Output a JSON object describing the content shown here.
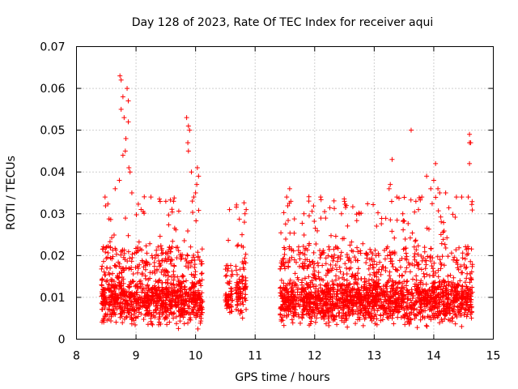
{
  "chart_data": {
    "type": "scatter",
    "title": "Day 128 of 2023, Rate Of TEC Index for receiver aqui",
    "xlabel": "GPS time / hours",
    "ylabel": "ROTI / TECUs",
    "xlim": [
      8,
      15
    ],
    "ylim": [
      0,
      0.07
    ],
    "x_ticks": [
      "8",
      "9",
      "10",
      "11",
      "12",
      "13",
      "14",
      "15"
    ],
    "y_ticks": [
      "0",
      "0.01",
      "0.02",
      "0.03",
      "0.04",
      "0.05",
      "0.06",
      "0.07"
    ],
    "grid": true,
    "marker": "+",
    "color": "#ff0000",
    "series": [
      {
        "segments": [
          {
            "x_start": 8.42,
            "x_end": 10.12,
            "baseline": 0.009,
            "spread": 0.006,
            "count": 1100
          },
          {
            "x_start": 10.5,
            "x_end": 10.62,
            "baseline": 0.009,
            "spread": 0.004,
            "count": 60
          },
          {
            "x_start": 10.67,
            "x_end": 10.85,
            "baseline": 0.011,
            "spread": 0.006,
            "count": 90
          },
          {
            "x_start": 11.42,
            "x_end": 14.65,
            "baseline": 0.009,
            "spread": 0.006,
            "count": 2000
          }
        ],
        "highlights": [
          {
            "x": 8.73,
            "y": 0.063
          },
          {
            "x": 8.75,
            "y": 0.062
          },
          {
            "x": 8.85,
            "y": 0.06
          },
          {
            "x": 8.78,
            "y": 0.058
          },
          {
            "x": 8.87,
            "y": 0.057
          },
          {
            "x": 8.75,
            "y": 0.055
          },
          {
            "x": 8.8,
            "y": 0.053
          },
          {
            "x": 8.87,
            "y": 0.052
          },
          {
            "x": 8.83,
            "y": 0.048
          },
          {
            "x": 8.82,
            "y": 0.045
          },
          {
            "x": 8.78,
            "y": 0.044
          },
          {
            "x": 8.88,
            "y": 0.041
          },
          {
            "x": 8.9,
            "y": 0.04
          },
          {
            "x": 8.72,
            "y": 0.038
          },
          {
            "x": 8.65,
            "y": 0.036
          },
          {
            "x": 8.93,
            "y": 0.035
          },
          {
            "x": 9.25,
            "y": 0.034
          },
          {
            "x": 9.5,
            "y": 0.033
          },
          {
            "x": 9.63,
            "y": 0.033
          },
          {
            "x": 8.48,
            "y": 0.034
          },
          {
            "x": 9.85,
            "y": 0.053
          },
          {
            "x": 9.88,
            "y": 0.051
          },
          {
            "x": 9.9,
            "y": 0.05
          },
          {
            "x": 9.87,
            "y": 0.047
          },
          {
            "x": 9.88,
            "y": 0.045
          },
          {
            "x": 10.03,
            "y": 0.041
          },
          {
            "x": 9.93,
            "y": 0.04
          },
          {
            "x": 10.05,
            "y": 0.039
          },
          {
            "x": 10.02,
            "y": 0.037
          },
          {
            "x": 9.97,
            "y": 0.034
          },
          {
            "x": 10.0,
            "y": 0.035
          },
          {
            "x": 10.57,
            "y": 0.031
          },
          {
            "x": 10.85,
            "y": 0.031
          },
          {
            "x": 10.83,
            "y": 0.03
          },
          {
            "x": 10.82,
            "y": 0.028
          },
          {
            "x": 10.78,
            "y": 0.025
          },
          {
            "x": 10.8,
            "y": 0.022
          },
          {
            "x": 11.53,
            "y": 0.034
          },
          {
            "x": 11.58,
            "y": 0.036
          },
          {
            "x": 11.6,
            "y": 0.033
          },
          {
            "x": 11.82,
            "y": 0.03
          },
          {
            "x": 12.1,
            "y": 0.034
          },
          {
            "x": 12.5,
            "y": 0.033
          },
          {
            "x": 12.45,
            "y": 0.03
          },
          {
            "x": 12.75,
            "y": 0.03
          },
          {
            "x": 13.3,
            "y": 0.043
          },
          {
            "x": 13.27,
            "y": 0.037
          },
          {
            "x": 13.25,
            "y": 0.036
          },
          {
            "x": 13.38,
            "y": 0.034
          },
          {
            "x": 13.62,
            "y": 0.05
          },
          {
            "x": 13.88,
            "y": 0.039
          },
          {
            "x": 14.03,
            "y": 0.042
          },
          {
            "x": 14.0,
            "y": 0.038
          },
          {
            "x": 13.95,
            "y": 0.036
          },
          {
            "x": 14.07,
            "y": 0.036
          },
          {
            "x": 14.1,
            "y": 0.035
          },
          {
            "x": 14.2,
            "y": 0.035
          },
          {
            "x": 13.8,
            "y": 0.034
          },
          {
            "x": 14.38,
            "y": 0.034
          },
          {
            "x": 14.47,
            "y": 0.034
          },
          {
            "x": 13.7,
            "y": 0.033
          },
          {
            "x": 14.6,
            "y": 0.049
          },
          {
            "x": 14.6,
            "y": 0.047
          },
          {
            "x": 14.62,
            "y": 0.047
          },
          {
            "x": 14.6,
            "y": 0.042
          },
          {
            "x": 14.58,
            "y": 0.034
          }
        ]
      }
    ]
  }
}
